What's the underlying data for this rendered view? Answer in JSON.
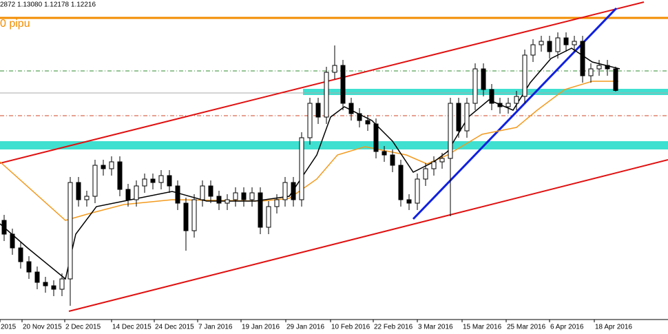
{
  "header": {
    "ohlc": "2872 1.13080 1.12178 1.12216",
    "label": "0 pipu"
  },
  "chart_data": {
    "type": "candlestick",
    "ylim": [
      1.03875,
      1.155
    ],
    "xtick_labels": [
      "2015",
      "20 Nov 2015",
      "2 Dec 2015",
      "14 Dec 2015",
      "24 Dec 2015",
      "7 Jan 2016",
      "19 Jan 2016",
      "29 Jan 2016",
      "10 Feb 2016",
      "22 Feb 2016",
      "3 Mar 2016",
      "15 Mar 2016",
      "25 Mar 2016",
      "6 Apr 2016",
      "18 Apr 2016"
    ],
    "open": [
      1.075,
      1.07,
      1.065,
      1.06,
      1.05625,
      1.0525,
      1.05125,
      1.05,
      1.05375,
      1.08875,
      1.0825,
      1.08375,
      1.095,
      1.09375,
      1.09625,
      1.08625,
      1.0825,
      1.0875,
      1.09,
      1.08875,
      1.09125,
      1.0875,
      1.08125,
      1.07125,
      1.0825,
      1.0875,
      1.08375,
      1.08125,
      1.0825,
      1.085,
      1.0825,
      1.085,
      1.0725,
      1.08,
      1.0825,
      1.08875,
      1.0825,
      1.105,
      1.1175,
      1.1125,
      1.12875,
      1.13125,
      1.1175,
      1.11375,
      1.11125,
      1.11,
      1.1,
      1.09875,
      1.095,
      1.0825,
      1.08125,
      1.09,
      1.09375,
      1.09625,
      1.0975,
      1.1175,
      1.1075,
      1.1175,
      1.13,
      1.1225,
      1.1175,
      1.11625,
      1.1175,
      1.12,
      1.135,
      1.13875,
      1.14,
      1.13625,
      1.14125,
      1.13875,
      1.14,
      1.1275,
      1.13,
      1.13125,
      1.13
    ],
    "high": [
      1.077,
      1.072,
      1.067,
      1.062,
      1.05825,
      1.0545,
      1.05325,
      1.05575,
      1.09075,
      1.09075,
      1.08575,
      1.097,
      1.097,
      1.09825,
      1.09825,
      1.08825,
      1.0895,
      1.092,
      1.092,
      1.09325,
      1.09325,
      1.0895,
      1.08325,
      1.0845,
      1.0895,
      1.0895,
      1.08575,
      1.0845,
      1.087,
      1.087,
      1.087,
      1.087,
      1.082,
      1.0845,
      1.09075,
      1.09075,
      1.107,
      1.1195,
      1.1195,
      1.13075,
      1.1385,
      1.13325,
      1.1195,
      1.11575,
      1.11325,
      1.112,
      1.102,
      1.10075,
      1.097,
      1.0845,
      1.092,
      1.09575,
      1.09825,
      1.0995,
      1.1195,
      1.1195,
      1.1195,
      1.132,
      1.132,
      1.1245,
      1.1195,
      1.1195,
      1.122,
      1.137,
      1.14075,
      1.142,
      1.142,
      1.14325,
      1.14325,
      1.142,
      1.142,
      1.132,
      1.13325,
      1.13325,
      1.1308
    ],
    "low": [
      1.0675,
      1.0625,
      1.0575,
      1.05375,
      1.05,
      1.04875,
      1.0475,
      1.0475,
      1.044,
      1.08,
      1.08,
      1.08125,
      1.09125,
      1.09125,
      1.08375,
      1.08,
      1.08,
      1.085,
      1.08625,
      1.08625,
      1.085,
      1.07875,
      1.064,
      1.06875,
      1.08,
      1.08125,
      1.07875,
      1.07875,
      1.08,
      1.08,
      1.08,
      1.07,
      1.07,
      1.0775,
      1.08,
      1.08,
      1.08,
      1.1025,
      1.11,
      1.11,
      1.12625,
      1.115,
      1.11125,
      1.10875,
      1.1075,
      1.0975,
      1.09625,
      1.0925,
      1.08,
      1.07875,
      1.07875,
      1.0875,
      1.09125,
      1.09375,
      1.0765,
      1.105,
      1.105,
      1.115,
      1.12,
      1.115,
      1.11375,
      1.11375,
      1.115,
      1.1175,
      1.1325,
      1.13625,
      1.13375,
      1.13375,
      1.13625,
      1.13625,
      1.125,
      1.125,
      1.1275,
      1.1275,
      1.12178
    ],
    "close": [
      1.07,
      1.065,
      1.06,
      1.05625,
      1.0525,
      1.05125,
      1.05,
      1.05375,
      1.08875,
      1.0825,
      1.08375,
      1.095,
      1.09375,
      1.09625,
      1.08625,
      1.0825,
      1.0875,
      1.09,
      1.08875,
      1.09125,
      1.0875,
      1.08125,
      1.07125,
      1.0825,
      1.0875,
      1.08375,
      1.08125,
      1.0825,
      1.085,
      1.0825,
      1.085,
      1.0725,
      1.08,
      1.0825,
      1.08875,
      1.0825,
      1.105,
      1.1175,
      1.1125,
      1.12875,
      1.13125,
      1.1175,
      1.11375,
      1.11125,
      1.11,
      1.1,
      1.09875,
      1.095,
      1.0825,
      1.08125,
      1.09,
      1.09375,
      1.09625,
      1.0975,
      1.1175,
      1.1075,
      1.1175,
      1.13,
      1.1225,
      1.1175,
      1.11625,
      1.1175,
      1.12,
      1.135,
      1.13875,
      1.14,
      1.13625,
      1.14125,
      1.13875,
      1.14,
      1.1275,
      1.13,
      1.13125,
      1.13,
      1.12216
    ]
  }
}
